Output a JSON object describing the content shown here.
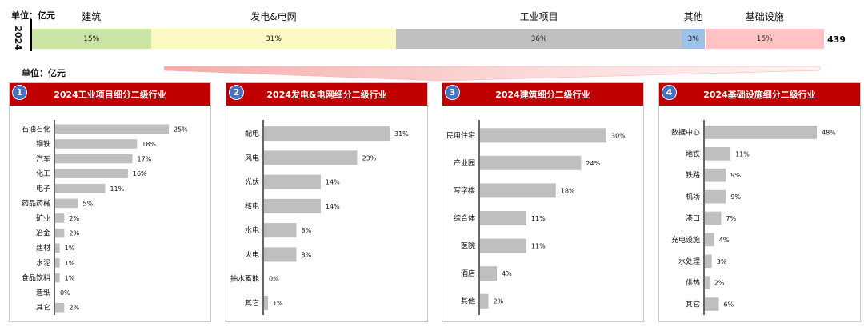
{
  "unit_label": "单位：亿元",
  "top": {
    "year": "2024",
    "total": "439",
    "colors": [
      "#c9e4a4",
      "#fdf9c4",
      "#c0c0c0",
      "#9cc3e5",
      "#ffc3c3"
    ]
  },
  "chart_data": [
    {
      "type": "bar",
      "stacked": true,
      "title": "",
      "categories": [
        "2024"
      ],
      "series": [
        {
          "name": "建筑",
          "values": [
            15
          ],
          "label": "15%"
        },
        {
          "name": "发电&电网",
          "values": [
            31
          ],
          "label": "31%"
        },
        {
          "name": "工业项目",
          "values": [
            36
          ],
          "label": "36%"
        },
        {
          "name": "其他",
          "values": [
            3
          ],
          "label": "3%"
        },
        {
          "name": "基础设施",
          "values": [
            15
          ],
          "label": "15%"
        }
      ],
      "total": 439,
      "unit": "单位：亿元"
    },
    {
      "type": "bar",
      "orientation": "horizontal",
      "number": "1",
      "title": "2024工业项目细分二级行业",
      "categories": [
        "石油石化",
        "钢铁",
        "汽车",
        "化工",
        "电子",
        "药品药械",
        "矿业",
        "冶金",
        "建材",
        "水泥",
        "食品饮料",
        "造纸",
        "其它"
      ],
      "values": [
        25,
        18,
        17,
        16,
        11,
        5,
        2,
        2,
        1,
        1,
        1,
        0,
        2
      ],
      "value_labels": [
        "25%",
        "18%",
        "17%",
        "16%",
        "11%",
        "5%",
        "2%",
        "2%",
        "1%",
        "1%",
        "1%",
        "0%",
        "2%"
      ],
      "xlim": [
        0,
        25
      ]
    },
    {
      "type": "bar",
      "orientation": "horizontal",
      "number": "2",
      "title": "2024发电&电网细分二级行业",
      "categories": [
        "配电",
        "风电",
        "光伏",
        "核电",
        "水电",
        "火电",
        "抽水蓄能",
        "其它"
      ],
      "values": [
        31,
        23,
        14,
        14,
        8,
        8,
        0,
        1
      ],
      "value_labels": [
        "31%",
        "23%",
        "14%",
        "14%",
        "8%",
        "8%",
        "0%",
        "1%"
      ],
      "xlim": [
        0,
        31
      ]
    },
    {
      "type": "bar",
      "orientation": "horizontal",
      "number": "3",
      "title": "2024建筑细分二级行业",
      "categories": [
        "民用住宅",
        "产业园",
        "写字楼",
        "综合体",
        "医院",
        "酒店",
        "其他"
      ],
      "values": [
        30,
        24,
        18,
        11,
        11,
        4,
        2
      ],
      "value_labels": [
        "30%",
        "24%",
        "18%",
        "11%",
        "11%",
        "4%",
        "2%"
      ],
      "xlim": [
        0,
        30
      ]
    },
    {
      "type": "bar",
      "orientation": "horizontal",
      "number": "4",
      "title": "2024基础设施细分二级行业",
      "categories": [
        "数据中心",
        "地铁",
        "铁路",
        "机场",
        "港口",
        "充电设施",
        "水处理",
        "供热",
        "其它"
      ],
      "values": [
        48,
        11,
        9,
        9,
        7,
        4,
        3,
        2,
        6
      ],
      "value_labels": [
        "48%",
        "11%",
        "9%",
        "9%",
        "7%",
        "4%",
        "3%",
        "2%",
        "6%"
      ],
      "xlim": [
        0,
        48
      ]
    }
  ]
}
